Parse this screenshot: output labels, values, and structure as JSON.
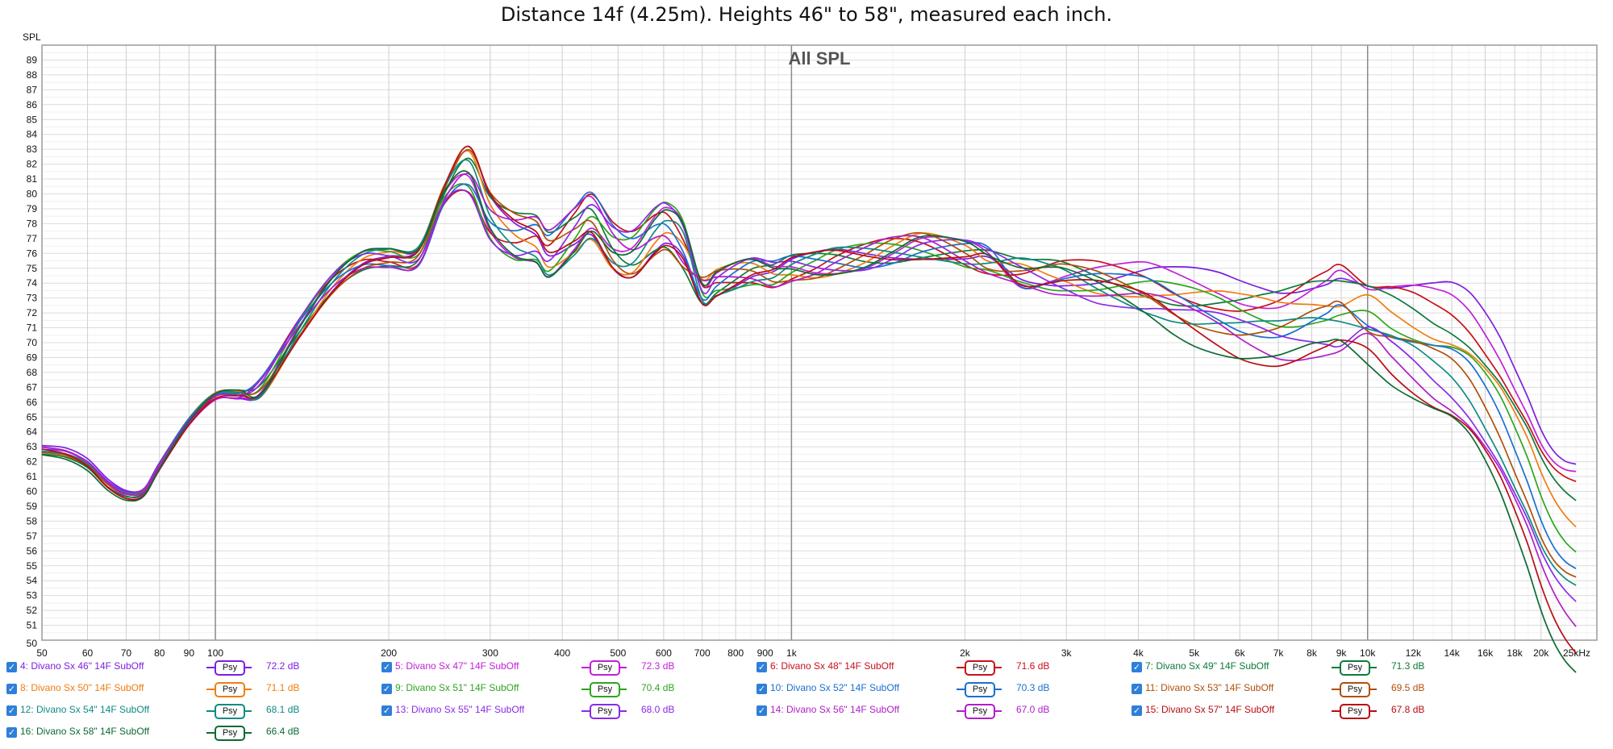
{
  "page_title": "Distance 14f (4.25m). Heights 46\" to 58\", measured each inch.",
  "chart_data": {
    "type": "line",
    "title": "All SPL",
    "ylabel": "SPL",
    "xlabel": "",
    "xscale": "log",
    "xlim": [
      50,
      25000
    ],
    "ylim": [
      50,
      90
    ],
    "grid": true,
    "x_tick_labels": [
      "50",
      "60",
      "70",
      "80",
      "90",
      "100",
      "200",
      "300",
      "400",
      "500",
      "600",
      "700",
      "800",
      "900",
      "1k",
      "2k",
      "3k",
      "4k",
      "5k",
      "6k",
      "7k",
      "8k",
      "9k",
      "10k",
      "12k",
      "14k",
      "16k",
      "18k",
      "20k",
      "25kHz"
    ],
    "x_tick_values": [
      50,
      60,
      70,
      80,
      90,
      100,
      200,
      300,
      400,
      500,
      600,
      700,
      800,
      900,
      1000,
      2000,
      3000,
      4000,
      5000,
      6000,
      7000,
      8000,
      9000,
      10000,
      12000,
      14000,
      16000,
      18000,
      20000,
      25000
    ],
    "y_tick_values": [
      51,
      52,
      53,
      54,
      55,
      56,
      57,
      58,
      59,
      60,
      61,
      62,
      63,
      64,
      65,
      66,
      67,
      68,
      69,
      70,
      71,
      72,
      73,
      74,
      75,
      76,
      77,
      78,
      79,
      80,
      81,
      82,
      83,
      84,
      85,
      86,
      87,
      88,
      89
    ],
    "y_bottom_label": "50",
    "x": [
      50,
      55,
      60,
      65,
      70,
      75,
      80,
      90,
      100,
      110,
      120,
      140,
      160,
      180,
      200,
      225,
      250,
      275,
      300,
      330,
      360,
      380,
      420,
      450,
      490,
      530,
      580,
      610,
      650,
      700,
      740,
      800,
      860,
      930,
      1000,
      1100,
      1200,
      1350,
      1500,
      1700,
      2000,
      2200,
      2500,
      2800,
      3000,
      3400,
      4000,
      4300,
      4600,
      5000,
      5500,
      6000,
      6500,
      7000,
      7500,
      8000,
      8500,
      9000,
      10000,
      11000,
      12000,
      13000,
      14000,
      15000,
      16000,
      17000,
      18000,
      19000,
      20000,
      21000,
      22000,
      23000
    ],
    "base_curve": [
      62.7,
      62.5,
      61.8,
      60.5,
      59.8,
      60.0,
      61.8,
      64.8,
      66.5,
      66.6,
      67.0,
      71.0,
      74.0,
      75.5,
      75.7,
      75.8,
      80.0,
      81.6,
      78.5,
      77.2,
      77.0,
      76.0,
      77.5,
      78.5,
      76.5,
      76.0,
      77.5,
      77.8,
      76.5,
      73.5,
      74.0,
      74.5,
      74.8,
      74.6,
      75.0,
      75.2,
      75.5,
      75.8,
      76.2,
      76.5,
      76.0,
      75.5,
      74.7,
      74.5,
      74.4,
      74.0,
      73.5,
      73.2,
      72.8,
      72.4,
      72.0,
      71.6,
      71.4,
      71.3,
      71.5,
      71.8,
      72.0,
      72.2,
      71.8,
      71.0,
      70.3,
      69.6,
      69.0,
      68.0,
      66.5,
      64.8,
      62.8,
      60.8,
      58.6,
      57.0,
      56.0,
      55.4
    ],
    "series": [
      {
        "name": "4: Divano Sx 46\" 14F SubOff",
        "color": "#7b1fe0",
        "value_label": "72.2 dB",
        "psy": "Psy"
      },
      {
        "name": "5: Divano Sx 47\" 14F SubOff",
        "color": "#c21fd8",
        "value_label": "72.3 dB",
        "psy": "Psy"
      },
      {
        "name": "6: Divano Sx 48\" 14F SubOff",
        "color": "#c8101a",
        "value_label": "71.6 dB",
        "psy": "Psy"
      },
      {
        "name": "7: Divano Sx 49\" 14F SubOff",
        "color": "#0e7a3c",
        "value_label": "71.3 dB",
        "psy": "Psy"
      },
      {
        "name": "8: Divano Sx 50\" 14F SubOff",
        "color": "#ef7d10",
        "value_label": "71.1 dB",
        "psy": "Psy"
      },
      {
        "name": "9: Divano Sx 51\" 14F SubOff",
        "color": "#2ea51e",
        "value_label": "70.4 dB",
        "psy": "Psy"
      },
      {
        "name": "10: Divano Sx 52\" 14F SubOff",
        "color": "#1a6fd0",
        "value_label": "70.3 dB",
        "psy": "Psy"
      },
      {
        "name": "11: Divano Sx 53\" 14F SubOff",
        "color": "#b0500a",
        "value_label": "69.5 dB",
        "psy": "Psy"
      },
      {
        "name": "12: Divano Sx 54\" 14F SubOff",
        "color": "#0e8a82",
        "value_label": "68.1 dB",
        "psy": "Psy"
      },
      {
        "name": "13: Divano Sx 55\" 14F SubOff",
        "color": "#8a2ae8",
        "value_label": "68.0 dB",
        "psy": "Psy"
      },
      {
        "name": "14: Divano Sx 56\" 14F SubOff",
        "color": "#b01ec8",
        "value_label": "67.0 dB",
        "psy": "Psy"
      },
      {
        "name": "15: Divano Sx 57\" 14F SubOff",
        "color": "#b80c12",
        "value_label": "67.8 dB",
        "psy": "Psy"
      },
      {
        "name": "16: Divano Sx 58\" 14F SubOff",
        "color": "#0d6a32",
        "value_label": "66.4 dB",
        "psy": "Psy"
      }
    ]
  }
}
